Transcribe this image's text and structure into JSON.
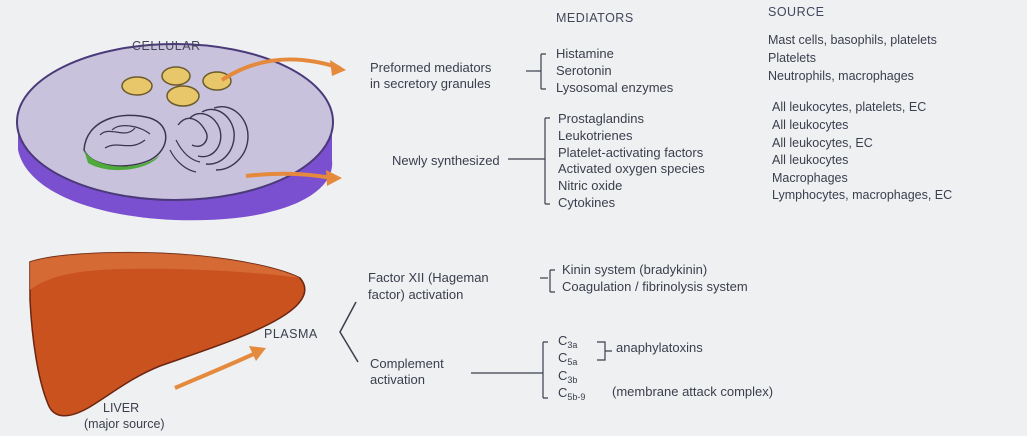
{
  "headers": {
    "mediators": "MEDIATORS",
    "source": "SOURCE",
    "cellular": "CELLULAR"
  },
  "cellular": {
    "preformed": {
      "label_line1": "Preformed mediators",
      "label_line2": "in secretory granules",
      "items": [
        {
          "mediator": "Histamine",
          "source": "Mast cells, basophils, platelets"
        },
        {
          "mediator": "Serotonin",
          "source": "Platelets"
        },
        {
          "mediator": "Lysosomal enzymes",
          "source": "Neutrophils, macrophages"
        }
      ]
    },
    "newly": {
      "label": "Newly synthesized",
      "items": [
        {
          "mediator": "Prostaglandins",
          "source": "All leukocytes, platelets, EC"
        },
        {
          "mediator": "Leukotrienes",
          "source": "All leukocytes"
        },
        {
          "mediator": "Platelet-activating factors",
          "source": "All leukocytes, EC"
        },
        {
          "mediator": "Activated oxygen species",
          "source": "All leukocytes"
        },
        {
          "mediator": "Nitric oxide",
          "source": "Macrophages"
        },
        {
          "mediator": "Cytokines",
          "source": "Lymphocytes, macrophages, EC"
        }
      ]
    }
  },
  "plasma": {
    "label": "PLASMA",
    "liver_line1": "LIVER",
    "liver_line2": "(major source)",
    "factor": {
      "label_line1": "Factor XII (Hageman",
      "label_line2": "factor) activation",
      "items": [
        "Kinin system (bradykinin)",
        "Coagulation / fibrinolysis system"
      ]
    },
    "complement": {
      "label_line1": "Complement",
      "label_line2": "activation",
      "c_letter": "C",
      "items": [
        {
          "sub": "3a"
        },
        {
          "sub": "5a"
        },
        {
          "sub": "3b"
        },
        {
          "sub": "5b-9"
        }
      ],
      "anaphylatoxins": "anaphylatoxins",
      "mac": "(membrane attack complex)"
    }
  },
  "colors": {
    "cell_top": "#c9c2dc",
    "cell_side": "#7a4fd0",
    "liver": "#c9521f",
    "arrow": "#e58a3c",
    "nucleus_green": "#4faa3c",
    "granule": "#e8c66a"
  }
}
